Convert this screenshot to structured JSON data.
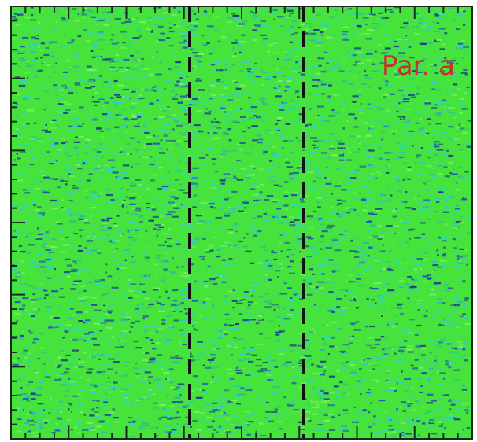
{
  "panel_label": "Par. a"
}
